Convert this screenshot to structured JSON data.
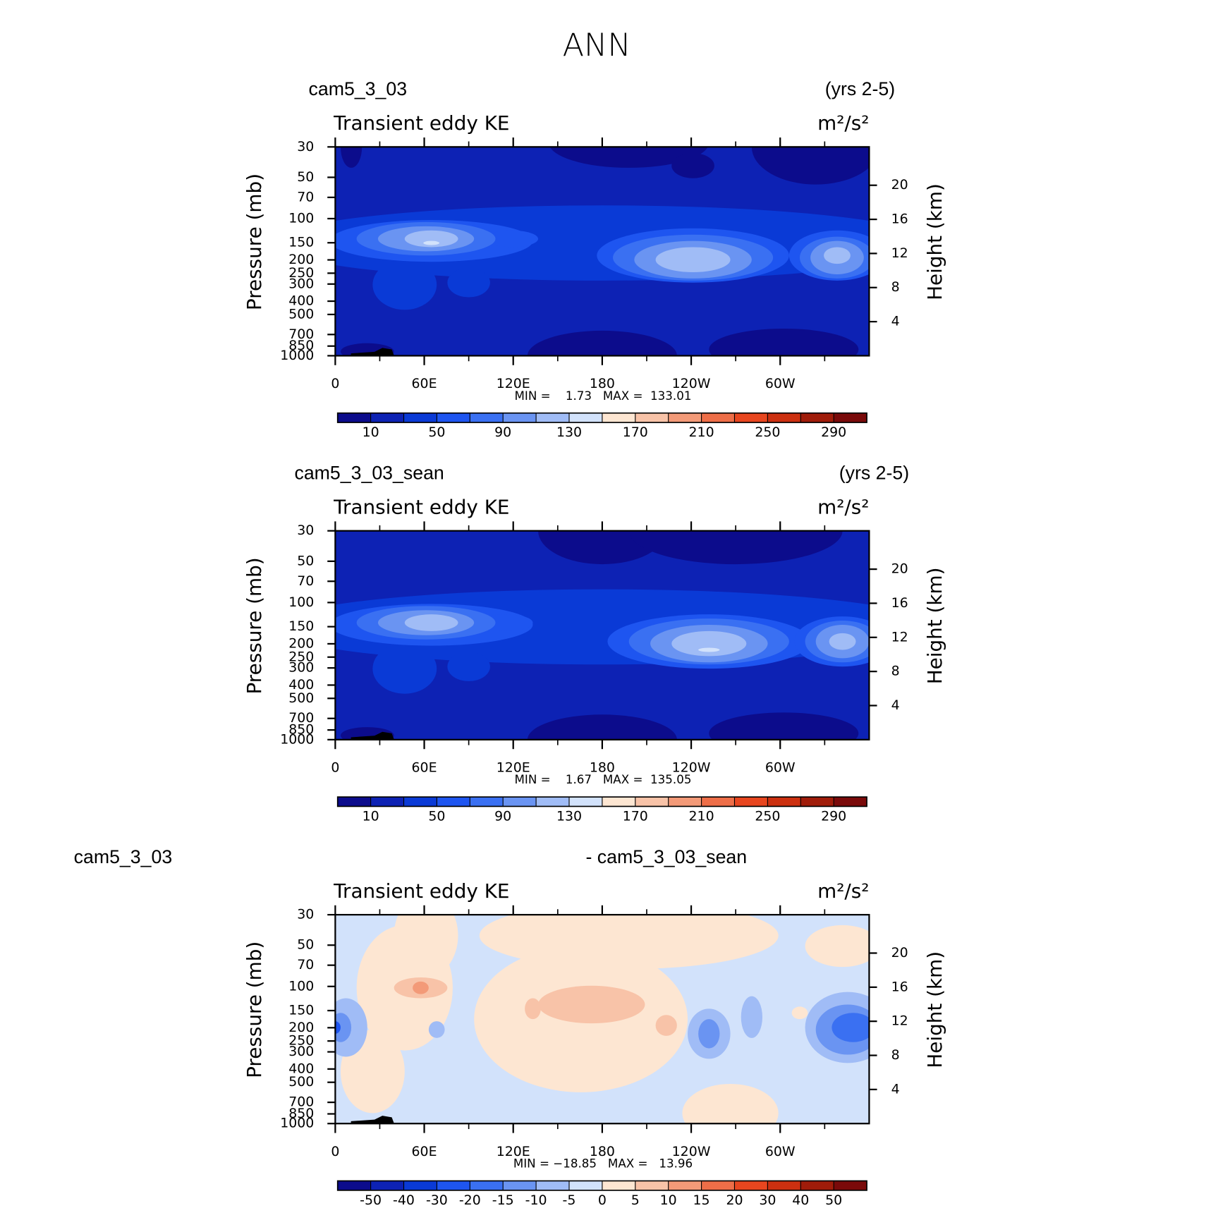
{
  "title": "ANN",
  "chart_data": [
    {
      "type": "contour",
      "left_title": "cam5_3_03",
      "right_title": "(yrs 2-5)",
      "subtitle": "Transient eddy KE",
      "units": "m²/s²",
      "xlim": [
        0,
        360
      ],
      "xticks": [
        0,
        {
          "value": 60,
          "label": "60E"
        },
        {
          "value": 120,
          "label": "120E"
        },
        180,
        {
          "value": 240,
          "label": "120W"
        },
        {
          "value": 300,
          "label": "60W"
        }
      ],
      "ylabel": "Pressure (mb)",
      "ylim": [
        1000,
        30
      ],
      "ylog": true,
      "yticks": [
        30,
        50,
        70,
        100,
        150,
        200,
        250,
        300,
        400,
        500,
        700,
        850,
        1000
      ],
      "y2label": "Height (km)",
      "y2lim": [
        0,
        24.5
      ],
      "y2ticks": [
        4,
        8,
        12,
        16,
        20
      ],
      "stats": "MIN =    1.73   MAX =  133.01",
      "colorbar": {
        "levels": [
          10,
          30,
          50,
          70,
          90,
          110,
          130,
          150,
          170,
          190,
          210,
          230,
          250,
          270,
          290
        ],
        "label_stride": 2,
        "colors": [
          "#0c0c8c",
          "#0d22b4",
          "#0a3ad6",
          "#1e55f0",
          "#3a70f2",
          "#6a94f2",
          "#a0bcf6",
          "#d2e2fb",
          "#fde6d2",
          "#f8c3a8",
          "#f39a78",
          "#ee6e48",
          "#e8461f",
          "#cc3010",
          "#a01c0a",
          "#7a0a0a"
        ]
      }
    },
    {
      "type": "contour",
      "left_title": "cam5_3_03_sean",
      "right_title": "(yrs 2-5)",
      "subtitle": "Transient eddy KE",
      "units": "m²/s²",
      "xlim": [
        0,
        360
      ],
      "xticks": [
        0,
        {
          "value": 60,
          "label": "60E"
        },
        {
          "value": 120,
          "label": "120E"
        },
        180,
        {
          "value": 240,
          "label": "120W"
        },
        {
          "value": 300,
          "label": "60W"
        }
      ],
      "ylabel": "Pressure (mb)",
      "ylim": [
        1000,
        30
      ],
      "ylog": true,
      "yticks": [
        30,
        50,
        70,
        100,
        150,
        200,
        250,
        300,
        400,
        500,
        700,
        850,
        1000
      ],
      "y2label": "Height (km)",
      "y2lim": [
        0,
        24.5
      ],
      "y2ticks": [
        4,
        8,
        12,
        16,
        20
      ],
      "stats": "MIN =    1.67   MAX =  135.05",
      "colorbar": {
        "levels": [
          10,
          30,
          50,
          70,
          90,
          110,
          130,
          150,
          170,
          190,
          210,
          230,
          250,
          270,
          290
        ],
        "label_stride": 2,
        "colors": [
          "#0c0c8c",
          "#0d22b4",
          "#0a3ad6",
          "#1e55f0",
          "#3a70f2",
          "#6a94f2",
          "#a0bcf6",
          "#d2e2fb",
          "#fde6d2",
          "#f8c3a8",
          "#f39a78",
          "#ee6e48",
          "#e8461f",
          "#cc3010",
          "#a01c0a",
          "#7a0a0a"
        ]
      }
    },
    {
      "type": "contour",
      "left_title": "cam5_3_03",
      "right_title": "- cam5_3_03_sean",
      "subtitle": "Transient eddy KE",
      "units": "m²/s²",
      "xlim": [
        0,
        360
      ],
      "xticks": [
        0,
        {
          "value": 60,
          "label": "60E"
        },
        {
          "value": 120,
          "label": "120E"
        },
        180,
        {
          "value": 240,
          "label": "120W"
        },
        {
          "value": 300,
          "label": "60W"
        }
      ],
      "ylabel": "Pressure (mb)",
      "ylim": [
        1000,
        30
      ],
      "ylog": true,
      "yticks": [
        30,
        50,
        70,
        100,
        150,
        200,
        250,
        300,
        400,
        500,
        700,
        850,
        1000
      ],
      "y2label": "Height (km)",
      "y2lim": [
        0,
        24.5
      ],
      "y2ticks": [
        4,
        8,
        12,
        16,
        20
      ],
      "stats": "MIN = −18.85   MAX =   13.96",
      "colorbar": {
        "levels": [
          -50,
          -40,
          -30,
          -20,
          -15,
          -10,
          -5,
          0,
          5,
          10,
          15,
          20,
          30,
          40,
          50
        ],
        "label_stride": 1,
        "colors": [
          "#0c0c8c",
          "#0d22b4",
          "#0a3ad6",
          "#1e55f0",
          "#3a70f2",
          "#6a94f2",
          "#a0bcf6",
          "#d2e2fb",
          "#fde6d2",
          "#f8c3a8",
          "#f39a78",
          "#ee6e48",
          "#e8461f",
          "#cc3010",
          "#a01c0a",
          "#7a0a0a"
        ]
      }
    }
  ]
}
